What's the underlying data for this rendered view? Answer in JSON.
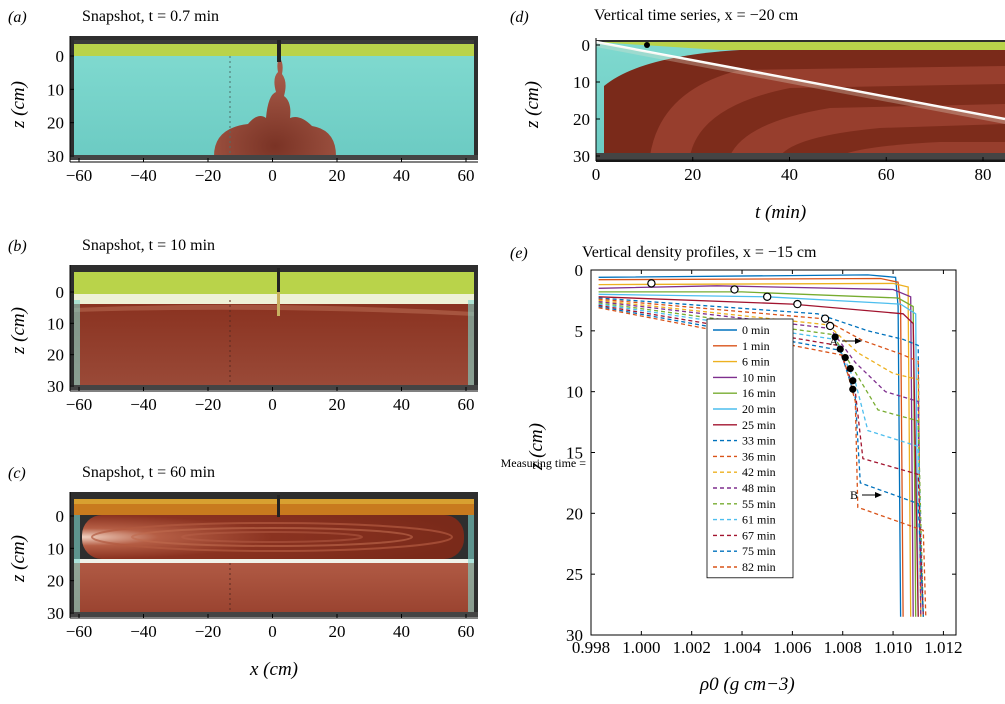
{
  "panels": {
    "a": {
      "label": "(a)",
      "title": "Snapshot, t = 0.7 min",
      "ylabel": "z (cm)",
      "xticks": [
        "−60",
        "−40",
        "−20",
        "0",
        "20",
        "40",
        "60"
      ],
      "yticks": [
        "0",
        "10",
        "20",
        "30"
      ]
    },
    "b": {
      "label": "(b)",
      "title": "Snapshot, t = 10  min",
      "ylabel": "z (cm)",
      "xticks": [
        "−60",
        "−40",
        "−20",
        "0",
        "20",
        "40",
        "60"
      ],
      "yticks": [
        "0",
        "10",
        "20",
        "30"
      ]
    },
    "c": {
      "label": "(c)",
      "title": "Snapshot, t = 60  min",
      "ylabel": "z (cm)",
      "xlabel": "x (cm)",
      "xticks": [
        "−60",
        "−40",
        "−20",
        "0",
        "20",
        "40",
        "60"
      ],
      "yticks": [
        "0",
        "10",
        "20",
        "30"
      ]
    },
    "d": {
      "label": "(d)",
      "title": "Vertical time series, x = −20 cm",
      "ylabel": "z (cm)",
      "xlabel": "t (min)",
      "xticks": [
        "0",
        "20",
        "40",
        "60",
        "80"
      ],
      "yticks": [
        "0",
        "10",
        "20",
        "30"
      ]
    },
    "e": {
      "label": "(e)",
      "title": "Vertical density profiles, x = −15 cm",
      "ylabel": "z (cm)",
      "xlabel": "ρ0 (g cm−3)",
      "measuring_label": "Measuring time =",
      "annotation_a": "A",
      "annotation_b": "B"
    }
  },
  "chart_data": {
    "type": "line",
    "title": "Vertical density profiles, x = −15 cm",
    "xlabel": "ρ0 (g cm−3)",
    "ylabel": "z (cm)",
    "xlim": [
      0.998,
      1.0125
    ],
    "ylim": [
      30,
      0
    ],
    "xticks": [
      "0.998",
      "1.000",
      "1.002",
      "1.004",
      "1.006",
      "1.008",
      "1.010",
      "1.012"
    ],
    "yticks": [
      "0",
      "5",
      "10",
      "15",
      "20",
      "25",
      "30"
    ],
    "legend_position": "center",
    "series": [
      {
        "name": "0 min",
        "color": "#0072BD",
        "dash": false,
        "points": [
          [
            0.9983,
            0.6
          ],
          [
            1.009,
            0.4
          ],
          [
            1.0101,
            0.6
          ],
          [
            1.0102,
            3
          ],
          [
            1.0103,
            28.5
          ]
        ]
      },
      {
        "name": "1 min",
        "color": "#D95319",
        "dash": false,
        "points": [
          [
            0.9983,
            0.8
          ],
          [
            1.0095,
            0.7
          ],
          [
            1.0102,
            1.0
          ],
          [
            1.0103,
            3
          ],
          [
            1.0104,
            28.5
          ]
        ]
      },
      {
        "name": "6 min",
        "color": "#EDB120",
        "dash": false,
        "points": [
          [
            0.9983,
            1.2
          ],
          [
            1.01,
            1.1
          ],
          [
            1.0106,
            1.4
          ],
          [
            1.0106,
            3
          ],
          [
            1.0107,
            28.5
          ]
        ]
      },
      {
        "name": "10 min",
        "color": "#7E2F8E",
        "dash": false,
        "points": [
          [
            0.9983,
            1.5
          ],
          [
            1.003,
            1.3
          ],
          [
            1.01,
            1.6
          ],
          [
            1.0107,
            2.2
          ],
          [
            1.0108,
            28.5
          ]
        ]
      },
      {
        "name": "16 min",
        "color": "#77AC30",
        "dash": false,
        "points": [
          [
            0.9983,
            1.8
          ],
          [
            1.004,
            1.8
          ],
          [
            1.0102,
            2.3
          ],
          [
            1.0108,
            3.0
          ],
          [
            1.0109,
            28.5
          ]
        ]
      },
      {
        "name": "20 min",
        "color": "#4DBEEE",
        "dash": false,
        "points": [
          [
            0.9983,
            2.0
          ],
          [
            1.005,
            2.2
          ],
          [
            1.0103,
            2.8
          ],
          [
            1.0109,
            3.6
          ],
          [
            1.011,
            28.5
          ]
        ]
      },
      {
        "name": "25 min",
        "color": "#A2142F",
        "dash": false,
        "points": [
          [
            0.9983,
            2.2
          ],
          [
            1.006,
            2.8
          ],
          [
            1.0104,
            3.6
          ],
          [
            1.0108,
            4.4
          ],
          [
            1.011,
            28.5
          ]
        ]
      },
      {
        "name": "33 min",
        "color": "#0072BD",
        "dash": true,
        "points": [
          [
            0.9983,
            2.3
          ],
          [
            1.007,
            3.6
          ],
          [
            1.009,
            5.0
          ],
          [
            1.0104,
            5.7
          ],
          [
            1.011,
            6.2
          ],
          [
            1.0111,
            28.5
          ]
        ]
      },
      {
        "name": "36 min",
        "color": "#D95319",
        "dash": true,
        "points": [
          [
            0.9983,
            2.4
          ],
          [
            1.0072,
            4.0
          ],
          [
            1.0088,
            5.8
          ],
          [
            1.0103,
            6.9
          ],
          [
            1.011,
            7.5
          ],
          [
            1.0111,
            28.5
          ]
        ]
      },
      {
        "name": "42 min",
        "color": "#EDB120",
        "dash": true,
        "points": [
          [
            0.9983,
            2.5
          ],
          [
            1.0074,
            4.5
          ],
          [
            1.0086,
            6.8
          ],
          [
            1.01,
            8.5
          ],
          [
            1.011,
            9.0
          ],
          [
            1.0111,
            28.5
          ]
        ]
      },
      {
        "name": "48 min",
        "color": "#7E2F8E",
        "dash": true,
        "points": [
          [
            0.9983,
            2.6
          ],
          [
            1.0075,
            4.8
          ],
          [
            1.0085,
            7.6
          ],
          [
            1.0097,
            10.0
          ],
          [
            1.011,
            10.8
          ],
          [
            1.0111,
            28.5
          ]
        ]
      },
      {
        "name": "55 min",
        "color": "#77AC30",
        "dash": true,
        "points": [
          [
            0.9983,
            2.7
          ],
          [
            1.0076,
            5.3
          ],
          [
            1.0085,
            8.4
          ],
          [
            1.0094,
            11.5
          ],
          [
            1.011,
            12.4
          ],
          [
            1.0112,
            28.5
          ]
        ]
      },
      {
        "name": "61 min",
        "color": "#4DBEEE",
        "dash": true,
        "points": [
          [
            0.9983,
            2.8
          ],
          [
            1.0077,
            5.7
          ],
          [
            1.0085,
            9.2
          ],
          [
            1.009,
            13.2
          ],
          [
            1.011,
            14.5
          ],
          [
            1.0112,
            28.5
          ]
        ]
      },
      {
        "name": "67 min",
        "color": "#A2142F",
        "dash": true,
        "points": [
          [
            0.9983,
            2.9
          ],
          [
            1.0078,
            6.2
          ],
          [
            1.0085,
            10.0
          ],
          [
            1.0088,
            15.5
          ],
          [
            1.011,
            16.8
          ],
          [
            1.0112,
            28.5
          ]
        ]
      },
      {
        "name": "75 min",
        "color": "#0072BD",
        "dash": true,
        "points": [
          [
            0.9983,
            3.0
          ],
          [
            1.0079,
            6.6
          ],
          [
            1.0085,
            10.5
          ],
          [
            1.0087,
            17.5
          ],
          [
            1.011,
            19.2
          ],
          [
            1.0112,
            28.5
          ]
        ]
      },
      {
        "name": "82 min",
        "color": "#D95319",
        "dash": true,
        "points": [
          [
            0.9983,
            3.1
          ],
          [
            1.008,
            7.0
          ],
          [
            1.0085,
            10.8
          ],
          [
            1.0086,
            19.5
          ],
          [
            1.0112,
            21.4
          ],
          [
            1.0113,
            28.5
          ]
        ]
      }
    ],
    "open_markers": [
      [
        1.0004,
        1.1
      ],
      [
        1.0037,
        1.6
      ],
      [
        1.005,
        2.2
      ],
      [
        1.0062,
        2.8
      ],
      [
        1.0073,
        4.0
      ],
      [
        1.0075,
        4.6
      ]
    ],
    "filled_markers": [
      [
        1.0077,
        5.5
      ],
      [
        1.0079,
        6.5
      ],
      [
        1.0081,
        7.2
      ],
      [
        1.0083,
        8.1
      ],
      [
        1.0084,
        9.1
      ],
      [
        1.0084,
        9.8
      ]
    ]
  }
}
